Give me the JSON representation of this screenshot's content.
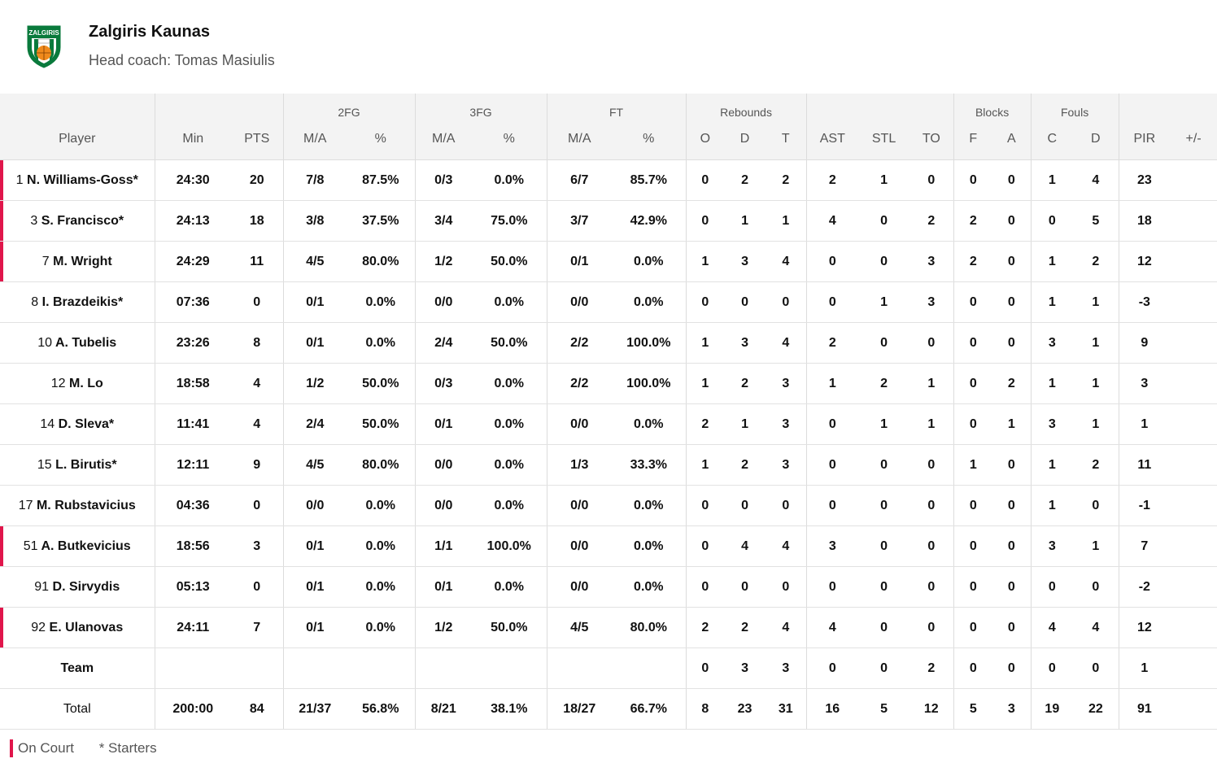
{
  "team": {
    "name": "Zalgiris Kaunas",
    "coach": "Head coach: Tomas Masiulis",
    "logo_text": "ZALGIRIS",
    "colors": {
      "green": "#0a7a3c",
      "orange": "#f08a1c",
      "accent": "#e0164b"
    }
  },
  "headers": {
    "groups": {
      "fg2": "2FG",
      "fg3": "3FG",
      "ft": "FT",
      "rebounds": "Rebounds",
      "blocks": "Blocks",
      "fouls": "Fouls"
    },
    "columns": {
      "player": "Player",
      "min": "Min",
      "pts": "PTS",
      "fg2_ma": "M/A",
      "fg2_pct": "%",
      "fg3_ma": "M/A",
      "fg3_pct": "%",
      "ft_ma": "M/A",
      "ft_pct": "%",
      "reb_o": "O",
      "reb_d": "D",
      "reb_t": "T",
      "ast": "AST",
      "stl": "STL",
      "to": "TO",
      "blk_f": "F",
      "blk_a": "A",
      "foul_c": "C",
      "foul_d": "D",
      "pir": "PIR",
      "pm": "+/-"
    }
  },
  "players": [
    {
      "num": "1",
      "name": "N. Williams-Goss*",
      "oncourt": true,
      "min": "24:30",
      "pts": "20",
      "fg2_ma": "7/8",
      "fg2_pct": "87.5%",
      "fg3_ma": "0/3",
      "fg3_pct": "0.0%",
      "ft_ma": "6/7",
      "ft_pct": "85.7%",
      "o": "0",
      "d": "2",
      "t": "2",
      "ast": "2",
      "stl": "1",
      "to": "0",
      "bf": "0",
      "ba": "0",
      "fc": "1",
      "fd": "4",
      "pir": "23",
      "pm": ""
    },
    {
      "num": "3",
      "name": "S. Francisco*",
      "oncourt": true,
      "min": "24:13",
      "pts": "18",
      "fg2_ma": "3/8",
      "fg2_pct": "37.5%",
      "fg3_ma": "3/4",
      "fg3_pct": "75.0%",
      "ft_ma": "3/7",
      "ft_pct": "42.9%",
      "o": "0",
      "d": "1",
      "t": "1",
      "ast": "4",
      "stl": "0",
      "to": "2",
      "bf": "2",
      "ba": "0",
      "fc": "0",
      "fd": "5",
      "pir": "18",
      "pm": ""
    },
    {
      "num": "7",
      "name": "M. Wright",
      "oncourt": true,
      "min": "24:29",
      "pts": "11",
      "fg2_ma": "4/5",
      "fg2_pct": "80.0%",
      "fg3_ma": "1/2",
      "fg3_pct": "50.0%",
      "ft_ma": "0/1",
      "ft_pct": "0.0%",
      "o": "1",
      "d": "3",
      "t": "4",
      "ast": "0",
      "stl": "0",
      "to": "3",
      "bf": "2",
      "ba": "0",
      "fc": "1",
      "fd": "2",
      "pir": "12",
      "pm": ""
    },
    {
      "num": "8",
      "name": "I. Brazdeikis*",
      "oncourt": false,
      "min": "07:36",
      "pts": "0",
      "fg2_ma": "0/1",
      "fg2_pct": "0.0%",
      "fg3_ma": "0/0",
      "fg3_pct": "0.0%",
      "ft_ma": "0/0",
      "ft_pct": "0.0%",
      "o": "0",
      "d": "0",
      "t": "0",
      "ast": "0",
      "stl": "1",
      "to": "3",
      "bf": "0",
      "ba": "0",
      "fc": "1",
      "fd": "1",
      "pir": "-3",
      "pm": ""
    },
    {
      "num": "10",
      "name": "A. Tubelis",
      "oncourt": false,
      "min": "23:26",
      "pts": "8",
      "fg2_ma": "0/1",
      "fg2_pct": "0.0%",
      "fg3_ma": "2/4",
      "fg3_pct": "50.0%",
      "ft_ma": "2/2",
      "ft_pct": "100.0%",
      "o": "1",
      "d": "3",
      "t": "4",
      "ast": "2",
      "stl": "0",
      "to": "0",
      "bf": "0",
      "ba": "0",
      "fc": "3",
      "fd": "1",
      "pir": "9",
      "pm": ""
    },
    {
      "num": "12",
      "name": "M. Lo",
      "oncourt": false,
      "min": "18:58",
      "pts": "4",
      "fg2_ma": "1/2",
      "fg2_pct": "50.0%",
      "fg3_ma": "0/3",
      "fg3_pct": "0.0%",
      "ft_ma": "2/2",
      "ft_pct": "100.0%",
      "o": "1",
      "d": "2",
      "t": "3",
      "ast": "1",
      "stl": "2",
      "to": "1",
      "bf": "0",
      "ba": "2",
      "fc": "1",
      "fd": "1",
      "pir": "3",
      "pm": ""
    },
    {
      "num": "14",
      "name": "D. Sleva*",
      "oncourt": false,
      "min": "11:41",
      "pts": "4",
      "fg2_ma": "2/4",
      "fg2_pct": "50.0%",
      "fg3_ma": "0/1",
      "fg3_pct": "0.0%",
      "ft_ma": "0/0",
      "ft_pct": "0.0%",
      "o": "2",
      "d": "1",
      "t": "3",
      "ast": "0",
      "stl": "1",
      "to": "1",
      "bf": "0",
      "ba": "1",
      "fc": "3",
      "fd": "1",
      "pir": "1",
      "pm": ""
    },
    {
      "num": "15",
      "name": "L. Birutis*",
      "oncourt": false,
      "min": "12:11",
      "pts": "9",
      "fg2_ma": "4/5",
      "fg2_pct": "80.0%",
      "fg3_ma": "0/0",
      "fg3_pct": "0.0%",
      "ft_ma": "1/3",
      "ft_pct": "33.3%",
      "o": "1",
      "d": "2",
      "t": "3",
      "ast": "0",
      "stl": "0",
      "to": "0",
      "bf": "1",
      "ba": "0",
      "fc": "1",
      "fd": "2",
      "pir": "11",
      "pm": ""
    },
    {
      "num": "17",
      "name": "M. Rubstavicius",
      "oncourt": false,
      "min": "04:36",
      "pts": "0",
      "fg2_ma": "0/0",
      "fg2_pct": "0.0%",
      "fg3_ma": "0/0",
      "fg3_pct": "0.0%",
      "ft_ma": "0/0",
      "ft_pct": "0.0%",
      "o": "0",
      "d": "0",
      "t": "0",
      "ast": "0",
      "stl": "0",
      "to": "0",
      "bf": "0",
      "ba": "0",
      "fc": "1",
      "fd": "0",
      "pir": "-1",
      "pm": ""
    },
    {
      "num": "51",
      "name": "A. Butkevicius",
      "oncourt": true,
      "min": "18:56",
      "pts": "3",
      "fg2_ma": "0/1",
      "fg2_pct": "0.0%",
      "fg3_ma": "1/1",
      "fg3_pct": "100.0%",
      "ft_ma": "0/0",
      "ft_pct": "0.0%",
      "o": "0",
      "d": "4",
      "t": "4",
      "ast": "3",
      "stl": "0",
      "to": "0",
      "bf": "0",
      "ba": "0",
      "fc": "3",
      "fd": "1",
      "pir": "7",
      "pm": ""
    },
    {
      "num": "91",
      "name": "D. Sirvydis",
      "oncourt": false,
      "min": "05:13",
      "pts": "0",
      "fg2_ma": "0/1",
      "fg2_pct": "0.0%",
      "fg3_ma": "0/1",
      "fg3_pct": "0.0%",
      "ft_ma": "0/0",
      "ft_pct": "0.0%",
      "o": "0",
      "d": "0",
      "t": "0",
      "ast": "0",
      "stl": "0",
      "to": "0",
      "bf": "0",
      "ba": "0",
      "fc": "0",
      "fd": "0",
      "pir": "-2",
      "pm": ""
    },
    {
      "num": "92",
      "name": "E. Ulanovas",
      "oncourt": true,
      "min": "24:11",
      "pts": "7",
      "fg2_ma": "0/1",
      "fg2_pct": "0.0%",
      "fg3_ma": "1/2",
      "fg3_pct": "50.0%",
      "ft_ma": "4/5",
      "ft_pct": "80.0%",
      "o": "2",
      "d": "2",
      "t": "4",
      "ast": "4",
      "stl": "0",
      "to": "0",
      "bf": "0",
      "ba": "0",
      "fc": "4",
      "fd": "4",
      "pir": "12",
      "pm": ""
    }
  ],
  "team_row": {
    "label": "Team",
    "o": "0",
    "d": "3",
    "t": "3",
    "ast": "0",
    "stl": "0",
    "to": "2",
    "bf": "0",
    "ba": "0",
    "fc": "0",
    "fd": "0",
    "pir": "1"
  },
  "total_row": {
    "label": "Total",
    "min": "200:00",
    "pts": "84",
    "fg2_ma": "21/37",
    "fg2_pct": "56.8%",
    "fg3_ma": "8/21",
    "fg3_pct": "38.1%",
    "ft_ma": "18/27",
    "ft_pct": "66.7%",
    "o": "8",
    "d": "23",
    "t": "31",
    "ast": "16",
    "stl": "5",
    "to": "12",
    "bf": "5",
    "ba": "3",
    "fc": "19",
    "fd": "22",
    "pir": "91"
  },
  "legend": {
    "on_court": "On Court",
    "starters": "* Starters"
  }
}
